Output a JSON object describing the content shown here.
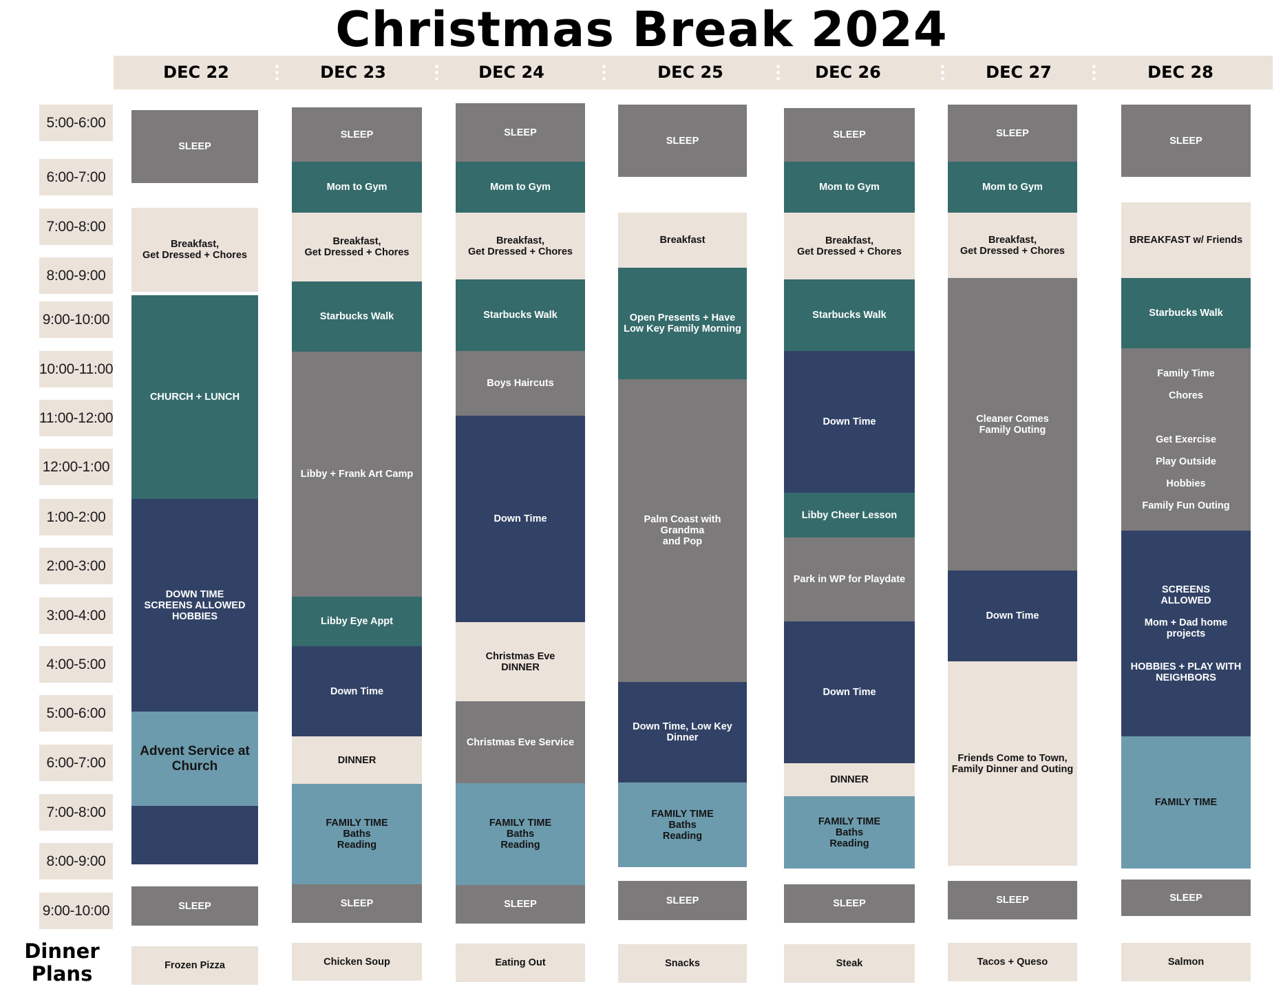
{
  "title": "Christmas Break 2024",
  "days": [
    {
      "label": "DEC 22",
      "dinner": "Frozen Pizza",
      "blocks": [
        {
          "color": "sleep",
          "lines": [
            "SLEEP"
          ]
        },
        {
          "color": "cream",
          "lines": [
            "Breakfast,",
            "Get Dressed + Chores"
          ]
        },
        {
          "color": "teal",
          "lines": [
            "CHURCH + LUNCH"
          ]
        },
        {
          "color": "navy",
          "lines": [
            "DOWN TIME",
            "SCREENS ALLOWED",
            "HOBBIES"
          ]
        },
        {
          "color": "blue",
          "lines": [
            "Advent Service at",
            "Church"
          ],
          "big": true
        },
        {
          "color": "navy",
          "lines": []
        },
        {
          "color": "sleep",
          "lines": [
            "SLEEP"
          ]
        }
      ]
    },
    {
      "label": "DEC 23",
      "dinner": "Chicken Soup",
      "blocks": [
        {
          "color": "sleep",
          "lines": [
            "SLEEP"
          ]
        },
        {
          "color": "teal",
          "lines": [
            "Mom to Gym"
          ]
        },
        {
          "color": "cream",
          "lines": [
            "Breakfast,",
            "Get Dressed + Chores"
          ]
        },
        {
          "color": "teal",
          "lines": [
            "Starbucks Walk"
          ]
        },
        {
          "color": "gray",
          "lines": [
            "Libby + Frank Art Camp"
          ]
        },
        {
          "color": "teal",
          "lines": [
            "Libby Eye Appt"
          ]
        },
        {
          "color": "navy",
          "lines": [
            "Down Time"
          ]
        },
        {
          "color": "cream",
          "lines": [
            "DINNER"
          ]
        },
        {
          "color": "blue",
          "lines": [
            "FAMILY TIME",
            "Baths",
            "Reading"
          ]
        },
        {
          "color": "sleep",
          "lines": [
            "SLEEP"
          ]
        }
      ]
    },
    {
      "label": "DEC 24",
      "dinner": "Eating Out",
      "blocks": [
        {
          "color": "sleep",
          "lines": [
            "SLEEP"
          ]
        },
        {
          "color": "teal",
          "lines": [
            "Mom to Gym"
          ]
        },
        {
          "color": "cream",
          "lines": [
            "Breakfast,",
            "Get Dressed + Chores"
          ]
        },
        {
          "color": "teal",
          "lines": [
            "Starbucks Walk"
          ]
        },
        {
          "color": "gray",
          "lines": [
            "Boys Haircuts"
          ]
        },
        {
          "color": "navy",
          "lines": [
            "Down Time"
          ]
        },
        {
          "color": "cream",
          "lines": [
            "Christmas Eve",
            "DINNER"
          ]
        },
        {
          "color": "gray",
          "lines": [
            "Christmas Eve Service"
          ]
        },
        {
          "color": "blue",
          "lines": [
            "FAMILY TIME",
            "Baths",
            "Reading"
          ]
        },
        {
          "color": "sleep",
          "lines": [
            "SLEEP"
          ]
        }
      ]
    },
    {
      "label": "DEC 25",
      "dinner": "Snacks",
      "blocks": [
        {
          "color": "sleep",
          "lines": [
            "SLEEP"
          ]
        },
        {
          "color": "cream",
          "lines": [
            "Breakfast"
          ]
        },
        {
          "color": "teal",
          "lines": [
            "Open Presents + Have",
            "Low Key Family Morning"
          ]
        },
        {
          "color": "gray",
          "lines": [
            "Palm Coast with Grandma",
            "and Pop"
          ]
        },
        {
          "color": "navy",
          "lines": [
            "Down Time, Low Key",
            "Dinner"
          ]
        },
        {
          "color": "blue",
          "lines": [
            "FAMILY TIME",
            "Baths",
            "Reading"
          ]
        },
        {
          "color": "sleep",
          "lines": [
            "SLEEP"
          ]
        }
      ]
    },
    {
      "label": "DEC 26",
      "dinner": "Steak",
      "blocks": [
        {
          "color": "sleep",
          "lines": [
            "SLEEP"
          ]
        },
        {
          "color": "teal",
          "lines": [
            "Mom to Gym"
          ]
        },
        {
          "color": "cream",
          "lines": [
            "Breakfast,",
            "Get Dressed + Chores"
          ]
        },
        {
          "color": "teal",
          "lines": [
            "Starbucks Walk"
          ]
        },
        {
          "color": "navy",
          "lines": [
            "Down Time"
          ]
        },
        {
          "color": "teal",
          "lines": [
            "Libby Cheer Lesson"
          ]
        },
        {
          "color": "gray",
          "lines": [
            "Park in WP for Playdate"
          ]
        },
        {
          "color": "navy",
          "lines": [
            "Down Time"
          ]
        },
        {
          "color": "cream",
          "lines": [
            "DINNER"
          ]
        },
        {
          "color": "blue",
          "lines": [
            "FAMILY TIME",
            "Baths",
            "Reading"
          ]
        },
        {
          "color": "sleep",
          "lines": [
            "SLEEP"
          ]
        }
      ]
    },
    {
      "label": "DEC 27",
      "dinner": "Tacos + Queso",
      "blocks": [
        {
          "color": "sleep",
          "lines": [
            "SLEEP"
          ]
        },
        {
          "color": "teal",
          "lines": [
            "Mom to Gym"
          ]
        },
        {
          "color": "cream",
          "lines": [
            "Breakfast,",
            "Get Dressed + Chores"
          ]
        },
        {
          "color": "gray",
          "lines": [
            "Cleaner Comes",
            "Family Outing"
          ]
        },
        {
          "color": "navy",
          "lines": [
            "Down Time"
          ]
        },
        {
          "color": "cream",
          "lines": [
            "Friends Come to Town,",
            "Family Dinner and Outing"
          ]
        },
        {
          "color": "sleep",
          "lines": [
            "SLEEP"
          ]
        }
      ]
    },
    {
      "label": "DEC 28",
      "dinner": "Salmon",
      "blocks": [
        {
          "color": "sleep",
          "lines": [
            "SLEEP"
          ]
        },
        {
          "color": "cream",
          "lines": [
            "BREAKFAST w/ Friends"
          ]
        },
        {
          "color": "teal",
          "lines": [
            "Starbucks Walk"
          ]
        },
        {
          "color": "gray",
          "lines": [
            "Family Time",
            "",
            "Chores",
            "",
            "",
            "",
            "Get Exercise",
            "",
            "Play Outside",
            "",
            "Hobbies",
            "",
            "Family Fun Outing"
          ]
        },
        {
          "color": "navy",
          "lines": [
            "SCREENS",
            "ALLOWED",
            "",
            "Mom + Dad home",
            "projects",
            "",
            "",
            "HOBBIES + PLAY WITH",
            "NEIGHBORS"
          ]
        },
        {
          "color": "blue",
          "lines": [
            "FAMILY TIME"
          ]
        },
        {
          "color": "sleep",
          "lines": [
            "SLEEP"
          ]
        }
      ]
    }
  ],
  "time_slots": [
    "5:00-6:00",
    "6:00-7:00",
    "7:00-8:00",
    "8:00-9:00",
    "9:00-10:00",
    "10:00-11:00",
    "11:00-12:00",
    "12:00-1:00",
    "1:00-2:00",
    "2:00-3:00",
    "3:00-4:00",
    "4:00-5:00",
    "5:00-6:00",
    "6:00-7:00",
    "7:00-8:00",
    "8:00-9:00",
    "9:00-10:00"
  ],
  "dinner_plans_label": [
    "Dinner",
    "Plans"
  ]
}
